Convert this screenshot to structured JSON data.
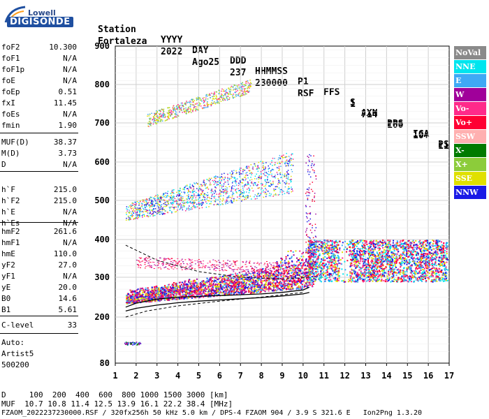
{
  "logo": {
    "line1": "Lowell",
    "line2": "DIGISONDE"
  },
  "header": {
    "labels": [
      "Station",
      "YYYY",
      "DAY",
      "DDD",
      "HHMMSS",
      "P1",
      "FFS",
      "S",
      "AXN",
      "PPS",
      "IGA",
      "PS"
    ],
    "values": [
      "Fortaleza",
      "2022",
      "Ago25",
      "237",
      "230000",
      "RSF",
      "1",
      "714",
      "100",
      "10+",
      "11"
    ]
  },
  "params_group1": [
    {
      "label": "foF2",
      "value": "10.300"
    },
    {
      "label": "foF1",
      "value": "N/A"
    },
    {
      "label": "foF1p",
      "value": "N/A"
    },
    {
      "label": "foE",
      "value": "N/A"
    },
    {
      "label": "foEp",
      "value": "0.51"
    },
    {
      "label": "fxI",
      "value": "11.45"
    },
    {
      "label": "foEs",
      "value": "N/A"
    },
    {
      "label": "fmin",
      "value": "1.90"
    }
  ],
  "params_group2": [
    {
      "label": "MUF(D)",
      "value": "38.37"
    },
    {
      "label": "M(D)",
      "value": "3.73"
    },
    {
      "label": "D",
      "value": "N/A"
    }
  ],
  "params_group3": [
    {
      "label": "h`F",
      "value": "215.0"
    },
    {
      "label": "h`F2",
      "value": "215.0"
    },
    {
      "label": "h`E",
      "value": "N/A"
    },
    {
      "label": "h`Es",
      "value": "N/A"
    }
  ],
  "params_group4": [
    {
      "label": "hmF2",
      "value": "261.6"
    },
    {
      "label": "hmF1",
      "value": "N/A"
    },
    {
      "label": "hmE",
      "value": "110.0"
    },
    {
      "label": "yF2",
      "value": "27.0"
    },
    {
      "label": "yF1",
      "value": "N/A"
    },
    {
      "label": "yE",
      "value": "20.0"
    },
    {
      "label": "B0",
      "value": "14.6"
    },
    {
      "label": "B1",
      "value": "5.61"
    }
  ],
  "params_group5": [
    {
      "label": "C-level",
      "value": "33"
    }
  ],
  "autoscaling": {
    "line1": "Auto:",
    "line2": "Artist5",
    "line3": "500200"
  },
  "legend": [
    {
      "label": "NoVal",
      "color": "#8a8a8a",
      "text": "#ffffff"
    },
    {
      "label": "NNE",
      "color": "#00e5ee",
      "text": "#ffffff"
    },
    {
      "label": "E",
      "color": "#3fa9f5",
      "text": "#ffffff"
    },
    {
      "label": "W",
      "color": "#a0009a",
      "text": "#ffffff"
    },
    {
      "label": "Vo-",
      "color": "#ff2a8a",
      "text": "#ffffff"
    },
    {
      "label": "Vo+",
      "color": "#ff0033",
      "text": "#ffffff"
    },
    {
      "label": "SSW",
      "color": "#ffb0b0",
      "text": "#ffffff"
    },
    {
      "label": "X-",
      "color": "#007a00",
      "text": "#ffffff"
    },
    {
      "label": "X+",
      "color": "#8ccc3a",
      "text": "#ffffff"
    },
    {
      "label": "SSE",
      "color": "#e0e000",
      "text": "#ffffff"
    },
    {
      "label": "NNW",
      "color": "#1a1ae6",
      "text": "#ffffff"
    }
  ],
  "footer": {
    "line1": "D     100  200  400  600  800 1000 1500 3000 [km]",
    "line2": "MUF  10.7 10.8 11.4 12.5 13.9 16.1 22.2 38.4 [MHz]",
    "line3": "FZAOM_2022237230000.RSF / 320fx256h 50 kHz 5.0 km / DPS-4 FZAOM 904 / 3.9 S 321.6 E   Ion2Png 1.3.20"
  },
  "chart_data": {
    "type": "scatter",
    "xlim": [
      1,
      17
    ],
    "ylim": [
      80,
      900
    ],
    "x_ticks": [
      "1",
      "2",
      "3",
      "4",
      "5",
      "6",
      "7",
      "8",
      "9",
      "10",
      "11",
      "12",
      "13",
      "14",
      "15",
      "16",
      "17"
    ],
    "y_ticks": [
      "80",
      "200",
      "300",
      "400",
      "500",
      "600",
      "700",
      "800",
      "900"
    ],
    "y_tick_values": [
      80,
      200,
      300,
      400,
      500,
      600,
      700,
      800,
      900
    ],
    "grid": true,
    "legend_position": "right",
    "traces": [
      {
        "name": "O-trace F2 (1st hop)",
        "x_range": [
          1.5,
          10.5
        ],
        "h_start": [
          235,
          250
        ],
        "h_end": [
          265,
          300
        ],
        "colors": [
          "#ff0033",
          "#ff2a8a",
          "#a0009a",
          "#1a1ae6",
          "#3fa9f5",
          "#e0e000"
        ]
      },
      {
        "name": "2nd hop",
        "x_range": [
          1.5,
          9.5
        ],
        "h_start": [
          450,
          490
        ],
        "h_end": [
          520,
          600
        ],
        "colors": [
          "#3fa9f5",
          "#1a1ae6",
          "#e0e000",
          "#ff2a8a",
          "#00e5ee"
        ]
      },
      {
        "name": "3rd hop",
        "x_range": [
          2.5,
          7.5
        ],
        "h_start": [
          690,
          720
        ],
        "h_end": [
          780,
          810
        ],
        "colors": [
          "#3fa9f5",
          "#e0e000",
          "#8ccc3a",
          "#ff2a8a"
        ]
      },
      {
        "name": "spread F",
        "x_range": [
          10.2,
          16.9
        ],
        "h_start": [
          290,
          400
        ],
        "h_end": [
          290,
          400
        ],
        "colors": [
          "#1a1ae6",
          "#ff0033",
          "#ff2a8a",
          "#e0e000",
          "#3fa9f5",
          "#00e5ee"
        ]
      }
    ],
    "profile_lines": [
      {
        "name": "o-trace",
        "points": [
          [
            1.5,
            225
          ],
          [
            2,
            235
          ],
          [
            3,
            245
          ],
          [
            4,
            250
          ],
          [
            5,
            252
          ],
          [
            6,
            254
          ],
          [
            7,
            256
          ],
          [
            8,
            258
          ],
          [
            9,
            262
          ],
          [
            10,
            268
          ],
          [
            10.3,
            275
          ]
        ]
      },
      {
        "name": "x-trace",
        "points": [
          [
            1.5,
            215
          ],
          [
            2,
            222
          ],
          [
            3,
            230
          ],
          [
            4,
            236
          ],
          [
            5,
            240
          ],
          [
            6,
            243
          ],
          [
            7,
            246
          ],
          [
            8,
            249
          ],
          [
            9,
            253
          ],
          [
            10,
            258
          ],
          [
            10.3,
            262
          ]
        ]
      },
      {
        "name": "profile-dashed",
        "points": [
          [
            1.5,
            200
          ],
          [
            2.5,
            215
          ],
          [
            4,
            228
          ],
          [
            6,
            240
          ],
          [
            8,
            250
          ],
          [
            10,
            262
          ]
        ]
      },
      {
        "name": "upper-dashed",
        "points": [
          [
            1.5,
            385
          ],
          [
            3,
            345
          ],
          [
            5,
            315
          ],
          [
            7,
            300
          ],
          [
            9,
            295
          ],
          [
            10.3,
            300
          ]
        ]
      }
    ]
  }
}
